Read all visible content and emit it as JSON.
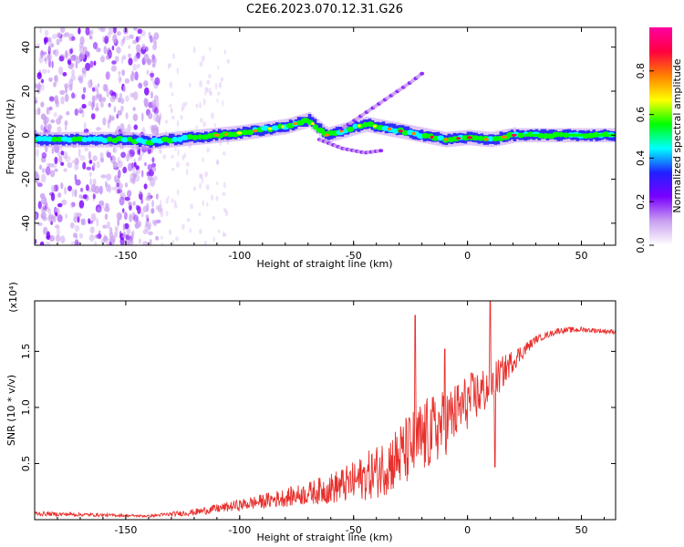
{
  "title": "C2E6.2023.070.12.31.G26",
  "chart_data": [
    {
      "type": "heatmap",
      "name": "spectrogram",
      "xlabel": "Height of straight line (km)",
      "ylabel": "Frequency (Hz)",
      "xlim": [
        -190,
        65
      ],
      "ylim": [
        -50,
        49
      ],
      "xticks": [
        -150,
        -100,
        -50,
        0,
        50
      ],
      "xtick_labels": [
        "-150",
        "-100",
        "-50",
        "0",
        "50"
      ],
      "yticks": [
        -40,
        -20,
        0,
        20,
        40
      ],
      "ytick_labels": [
        "-40",
        "-20",
        "0",
        "20",
        "40"
      ],
      "ridge": {
        "x": [
          -190,
          -170,
          -150,
          -140,
          -120,
          -100,
          -80,
          -70,
          -62,
          -55,
          -45,
          -35,
          -25,
          -15,
          -10,
          0,
          10,
          20,
          30,
          65
        ],
        "y": [
          -2,
          -2,
          -2,
          -3,
          -1,
          1,
          4,
          7,
          0,
          2,
          5,
          3,
          1,
          -1,
          -2,
          -1,
          -2,
          0,
          0,
          0
        ]
      },
      "upper_branch": {
        "x": [
          -55,
          -45,
          -35,
          -25,
          -20
        ],
        "y": [
          3,
          10,
          17,
          24,
          28
        ]
      },
      "lower_branch": {
        "x": [
          -65,
          -55,
          -45,
          -38
        ],
        "y": [
          -2,
          -6,
          -8,
          -7
        ]
      },
      "colorbar": {
        "label": "Normalized spectral amplitude",
        "range": [
          0,
          1
        ],
        "ticks": [
          0.0,
          0.2,
          0.4,
          0.6,
          0.8
        ],
        "tick_labels": [
          "0.0",
          "0.2",
          "0.4",
          "0.6",
          "0.8"
        ],
        "colors": [
          "#ffffff",
          "#c9a0f0",
          "#7a00ff",
          "#2020ff",
          "#00ffff",
          "#00ff00",
          "#ffff00",
          "#ff8000",
          "#ff0040",
          "#ff00a0"
        ]
      }
    },
    {
      "type": "line",
      "name": "snr",
      "xlabel": "Height of straight line (km)",
      "ylabel": "SNR (10 * v/v)",
      "multiplier_label": "(x10⁴)",
      "xlim": [
        -190,
        65
      ],
      "ylim": [
        0,
        1.95
      ],
      "xticks": [
        -150,
        -100,
        -50,
        0,
        50
      ],
      "xtick_labels": [
        "-150",
        "-100",
        "-50",
        "0",
        "50"
      ],
      "yticks": [
        0.5,
        1.0,
        1.5
      ],
      "ytick_labels": [
        "0.5",
        "1.0",
        "1.5"
      ],
      "color": "#e8302c",
      "trend": {
        "x": [
          -190,
          -140,
          -120,
          -100,
          -80,
          -60,
          -50,
          -40,
          -30,
          -20,
          -10,
          0,
          10,
          20,
          30,
          40,
          50,
          65
        ],
        "y": [
          0.05,
          0.03,
          0.06,
          0.12,
          0.18,
          0.25,
          0.3,
          0.38,
          0.5,
          0.65,
          0.8,
          1.0,
          1.15,
          1.4,
          1.6,
          1.68,
          1.69,
          1.67
        ]
      },
      "noise_amplitude": {
        "x": [
          -190,
          -140,
          -100,
          -70,
          -50,
          -30,
          -20,
          -10,
          0,
          10,
          20,
          30,
          65
        ],
        "y": [
          0.02,
          0.01,
          0.05,
          0.1,
          0.18,
          0.3,
          0.35,
          0.3,
          0.25,
          0.2,
          0.1,
          0.03,
          0.02
        ]
      },
      "peaks": [
        {
          "x": -23,
          "y": 1.82
        },
        {
          "x": -10,
          "y": 1.52
        },
        {
          "x": 10,
          "y": 1.95
        },
        {
          "x": 12,
          "y": 0.47
        }
      ]
    }
  ]
}
